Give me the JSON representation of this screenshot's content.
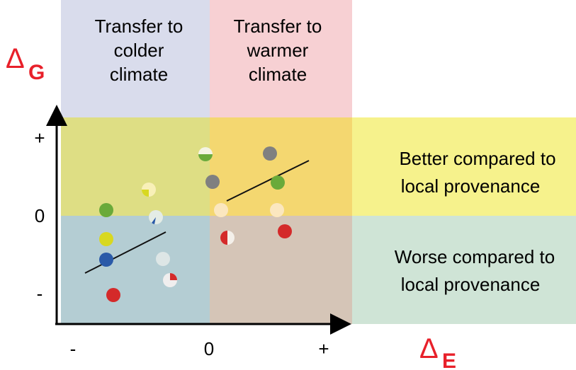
{
  "columns": {
    "left": [
      "Transfer to",
      "colder",
      "climate"
    ],
    "right": [
      "Transfer to",
      "warmer",
      "climate"
    ]
  },
  "rows": {
    "top": [
      "Better compared to",
      "local provenance"
    ],
    "bottom": [
      "Worse compared to",
      "local provenance"
    ]
  },
  "y_axis": {
    "symbol": "Δ",
    "subscript": "G",
    "ticks": [
      "+",
      "0",
      "-"
    ]
  },
  "x_axis": {
    "symbol": "Δ",
    "subscript": "E",
    "ticks": [
      "-",
      "0",
      "+"
    ]
  }
}
